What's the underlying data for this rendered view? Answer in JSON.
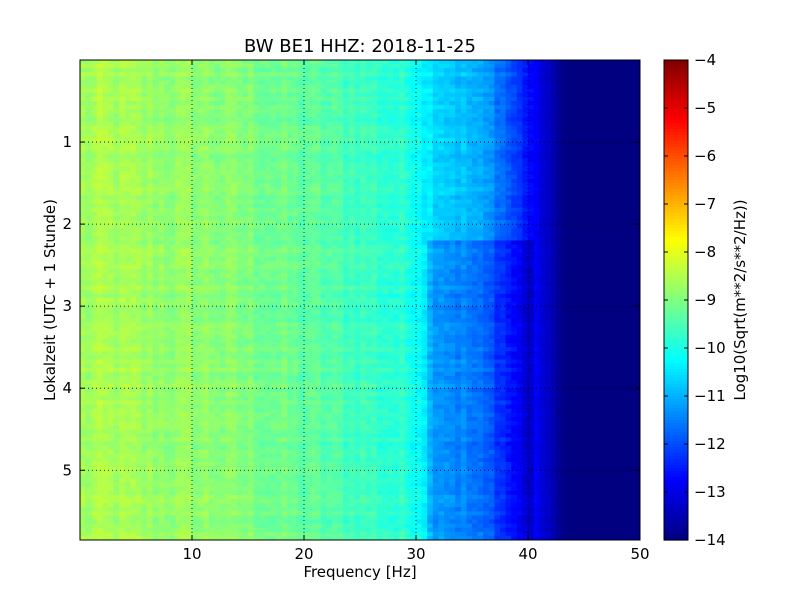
{
  "chart_data": {
    "type": "heatmap",
    "title": "BW BE1 HHZ: 2018-11-25",
    "xlabel": "Frequency [Hz]",
    "ylabel": "Lokalzeit (UTC + 1 Stunde)",
    "xlim": [
      0,
      50
    ],
    "ylim": [
      5.85,
      0
    ],
    "x_ticks": [
      10,
      20,
      30,
      40,
      50
    ],
    "y_ticks": [
      1,
      2,
      3,
      4,
      5
    ],
    "grid": true,
    "grid_style": "dotted",
    "colormap": "jet",
    "colorbar": {
      "label": "Log10(Sqrt(m**2/s**2/Hz))",
      "range": [
        -14,
        -4
      ],
      "ticks": [
        -4,
        -5,
        -6,
        -7,
        -8,
        -9,
        -10,
        -11,
        -12,
        -13,
        -14
      ]
    },
    "profile": {
      "frequency_hz": [
        0,
        2,
        5,
        8,
        10,
        15,
        20,
        25,
        28,
        30,
        31,
        33,
        35,
        37,
        38,
        39,
        40,
        41,
        42,
        43,
        44,
        50
      ],
      "log10_amplitude": [
        -8.7,
        -8.6,
        -8.7,
        -8.8,
        -8.8,
        -9.0,
        -9.3,
        -9.6,
        -9.8,
        -10.0,
        -10.4,
        -10.7,
        -11.0,
        -11.4,
        -11.8,
        -12.2,
        -12.6,
        -13.0,
        -13.4,
        -13.9,
        -14.0,
        -14.0
      ]
    },
    "features": [
      {
        "y_hours": 2.2,
        "freq_from_hz": 31,
        "freq_to_hz": 40,
        "note_delta": -0.6
      }
    ]
  }
}
